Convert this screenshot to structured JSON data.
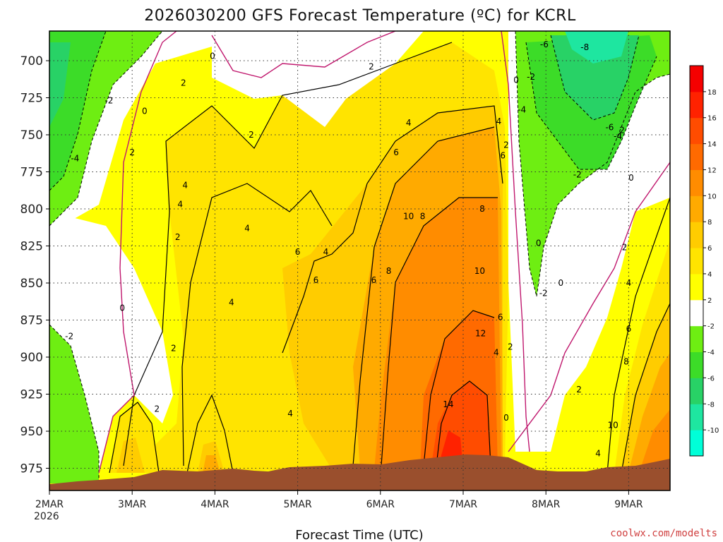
{
  "chart_data": {
    "type": "heatmap",
    "title": "2026030200 GFS Forecast Temperature (ºC) for KCRL",
    "xlabel": "Forecast Time (UTC)",
    "ylabel": "",
    "year_label": "2026",
    "credit": "coolwx.com/modelts",
    "x_ticks": [
      "2MAR",
      "3MAR",
      "4MAR",
      "5MAR",
      "6MAR",
      "7MAR",
      "8MAR",
      "9MAR"
    ],
    "x_range_days": [
      0,
      7.5
    ],
    "y_ticks": [
      700,
      725,
      750,
      775,
      800,
      825,
      850,
      875,
      900,
      925,
      950,
      975
    ],
    "y_range_hpa": [
      680,
      990
    ],
    "grid": true,
    "colorbar": {
      "levels": [
        -10,
        -8,
        -6,
        -4,
        -2,
        2,
        4,
        6,
        8,
        10,
        12,
        14,
        16,
        18
      ],
      "colors": [
        "#00ffd8",
        "#1ee6a0",
        "#28d266",
        "#3cdc28",
        "#6eee12",
        "#ffffff",
        "#ffff00",
        "#ffe400",
        "#ffcc00",
        "#ffaa00",
        "#ff8c00",
        "#ff6a00",
        "#ff4c00",
        "#ff2200",
        "#f50000"
      ],
      "placement": "right"
    },
    "contour_labels": [
      {
        "day": 1.97,
        "hpa": 697,
        "label": "0"
      },
      {
        "day": 1.62,
        "hpa": 715,
        "label": "2"
      },
      {
        "day": 0.72,
        "hpa": 727,
        "label": "-2"
      },
      {
        "day": 1.15,
        "hpa": 734,
        "label": "0"
      },
      {
        "day": 0.31,
        "hpa": 766,
        "label": "-4"
      },
      {
        "day": 1.0,
        "hpa": 762,
        "label": "2"
      },
      {
        "day": 1.64,
        "hpa": 784,
        "label": "4"
      },
      {
        "day": 1.58,
        "hpa": 797,
        "label": "4"
      },
      {
        "day": 1.55,
        "hpa": 819,
        "label": "2"
      },
      {
        "day": 2.39,
        "hpa": 813,
        "label": "4"
      },
      {
        "day": 2.44,
        "hpa": 750,
        "label": "2"
      },
      {
        "day": 3.89,
        "hpa": 704,
        "label": "2"
      },
      {
        "day": 4.34,
        "hpa": 742,
        "label": "4"
      },
      {
        "day": 4.19,
        "hpa": 762,
        "label": "6"
      },
      {
        "day": 3.0,
        "hpa": 829,
        "label": "6"
      },
      {
        "day": 3.34,
        "hpa": 829,
        "label": "4"
      },
      {
        "day": 3.22,
        "hpa": 848,
        "label": "6"
      },
      {
        "day": 3.92,
        "hpa": 848,
        "label": "6"
      },
      {
        "day": 2.2,
        "hpa": 863,
        "label": "4"
      },
      {
        "day": 1.5,
        "hpa": 894,
        "label": "2"
      },
      {
        "day": 0.88,
        "hpa": 867,
        "label": "0"
      },
      {
        "day": 0.24,
        "hpa": 886,
        "label": "-2"
      },
      {
        "day": 1.3,
        "hpa": 935,
        "label": "2"
      },
      {
        "day": 2.91,
        "hpa": 938,
        "label": "4"
      },
      {
        "day": 4.34,
        "hpa": 805,
        "label": "10"
      },
      {
        "day": 4.51,
        "hpa": 805,
        "label": "8"
      },
      {
        "day": 4.1,
        "hpa": 842,
        "label": "8"
      },
      {
        "day": 5.23,
        "hpa": 800,
        "label": "8"
      },
      {
        "day": 5.2,
        "hpa": 842,
        "label": "10"
      },
      {
        "day": 5.21,
        "hpa": 884,
        "label": "12"
      },
      {
        "day": 4.82,
        "hpa": 932,
        "label": "14"
      },
      {
        "day": 5.52,
        "hpa": 757,
        "label": "2"
      },
      {
        "day": 5.48,
        "hpa": 764,
        "label": "6"
      },
      {
        "day": 5.43,
        "hpa": 741,
        "label": "4"
      },
      {
        "day": 5.45,
        "hpa": 873,
        "label": "6"
      },
      {
        "day": 5.4,
        "hpa": 897,
        "label": "4"
      },
      {
        "day": 5.57,
        "hpa": 893,
        "label": "2"
      },
      {
        "day": 5.52,
        "hpa": 941,
        "label": "0"
      },
      {
        "day": 5.64,
        "hpa": 713,
        "label": "0"
      },
      {
        "day": 5.91,
        "hpa": 823,
        "label": "0"
      },
      {
        "day": 5.71,
        "hpa": 733,
        "label": "-4"
      },
      {
        "day": 5.82,
        "hpa": 711,
        "label": "-2"
      },
      {
        "day": 5.98,
        "hpa": 689,
        "label": "-6"
      },
      {
        "day": 6.47,
        "hpa": 691,
        "label": "-8"
      },
      {
        "day": 6.77,
        "hpa": 745,
        "label": "-6"
      },
      {
        "day": 6.92,
        "hpa": 747,
        "label": "2"
      },
      {
        "day": 6.87,
        "hpa": 751,
        "label": "-4"
      },
      {
        "day": 6.38,
        "hpa": 777,
        "label": "-2"
      },
      {
        "day": 7.03,
        "hpa": 779,
        "label": "0"
      },
      {
        "day": 6.18,
        "hpa": 850,
        "label": "0"
      },
      {
        "day": 5.97,
        "hpa": 857,
        "label": "-2"
      },
      {
        "day": 6.95,
        "hpa": 826,
        "label": "2"
      },
      {
        "day": 7.0,
        "hpa": 850,
        "label": "4"
      },
      {
        "day": 7.0,
        "hpa": 881,
        "label": "6"
      },
      {
        "day": 6.97,
        "hpa": 903,
        "label": "8"
      },
      {
        "day": 6.81,
        "hpa": 946,
        "label": "10"
      },
      {
        "day": 6.4,
        "hpa": 922,
        "label": "2"
      },
      {
        "day": 6.63,
        "hpa": 965,
        "label": "4"
      }
    ]
  }
}
